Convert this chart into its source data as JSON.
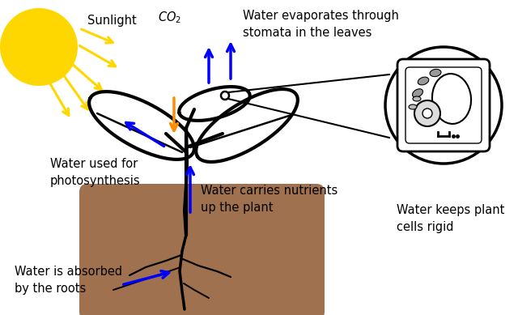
{
  "bg_color": "#ffffff",
  "soil_color": "#A0714F",
  "plant_color": "#000000",
  "sun_color": "#FFD700",
  "arrow_blue": "#0000FF",
  "arrow_orange": "#FF8C00",
  "arrow_yellow": "#FFD700",
  "text_color": "#000000",
  "labels": {
    "sunlight": "Sunlight",
    "co2": "$CO_2$",
    "evaporate": "Water evaporates through\nstomata in the leaves",
    "photosynthesis": "Water used for\nphotosynthesis",
    "nutrients": "Water carries nutrients\nup the plant",
    "roots": "Water is absorbed\nby the roots",
    "rigid": "Water keeps plant\ncells rigid"
  },
  "figsize": [
    6.4,
    3.89
  ],
  "dpi": 100
}
